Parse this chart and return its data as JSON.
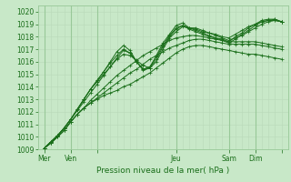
{
  "xlabel": "Pression niveau de la mer( hPa )",
  "bg_color": "#c8e8c8",
  "grid_color_minor": "#b8d8b8",
  "grid_color_major": "#98c898",
  "line_color": "#1a6e1a",
  "ylim": [
    1009,
    1020.5
  ],
  "xlim": [
    0,
    114
  ],
  "yticks": [
    1009,
    1010,
    1011,
    1012,
    1013,
    1014,
    1015,
    1016,
    1017,
    1018,
    1019,
    1020
  ],
  "xtick_positions": [
    3,
    15,
    27,
    63,
    87,
    99,
    111
  ],
  "xtick_labels": [
    "Mer",
    "Ven",
    "",
    "Jeu",
    "Sam",
    "Dim",
    ""
  ],
  "day_vlines": [
    3,
    15,
    27,
    63,
    87,
    99
  ],
  "series": [
    [
      3,
      1009.1,
      6,
      1009.5,
      9,
      1010.0,
      12,
      1010.5,
      15,
      1011.2,
      18,
      1011.8,
      21,
      1012.3,
      24,
      1012.7,
      27,
      1013.0,
      30,
      1013.3,
      33,
      1013.5,
      36,
      1013.7,
      39,
      1014.0,
      42,
      1014.2,
      45,
      1014.5,
      48,
      1014.8,
      51,
      1015.1,
      54,
      1015.5,
      57,
      1015.9,
      60,
      1016.3,
      63,
      1016.7,
      66,
      1017.0,
      69,
      1017.2,
      72,
      1017.3,
      75,
      1017.3,
      78,
      1017.2,
      81,
      1017.1,
      84,
      1017.0,
      87,
      1016.9,
      90,
      1016.8,
      93,
      1016.7,
      96,
      1016.6,
      99,
      1016.6,
      102,
      1016.5,
      105,
      1016.4,
      108,
      1016.3,
      111,
      1016.2
    ],
    [
      3,
      1009.1,
      6,
      1009.5,
      9,
      1010.0,
      12,
      1010.5,
      15,
      1011.2,
      18,
      1011.8,
      21,
      1012.3,
      24,
      1012.7,
      27,
      1013.1,
      30,
      1013.5,
      33,
      1013.9,
      36,
      1014.3,
      39,
      1014.7,
      42,
      1015.1,
      45,
      1015.4,
      48,
      1015.8,
      51,
      1016.2,
      54,
      1016.5,
      57,
      1016.8,
      60,
      1017.1,
      63,
      1017.3,
      66,
      1017.5,
      69,
      1017.7,
      72,
      1017.8,
      75,
      1017.8,
      78,
      1017.7,
      81,
      1017.6,
      84,
      1017.5,
      87,
      1017.4,
      90,
      1017.4,
      93,
      1017.4,
      96,
      1017.4,
      99,
      1017.4,
      102,
      1017.3,
      105,
      1017.2,
      108,
      1017.1,
      111,
      1017.0
    ],
    [
      3,
      1009.1,
      6,
      1009.5,
      9,
      1010.0,
      12,
      1010.5,
      15,
      1011.2,
      18,
      1011.8,
      21,
      1012.3,
      24,
      1012.9,
      27,
      1013.4,
      30,
      1013.9,
      33,
      1014.4,
      36,
      1014.9,
      39,
      1015.3,
      42,
      1015.7,
      45,
      1016.1,
      48,
      1016.5,
      51,
      1016.8,
      54,
      1017.1,
      57,
      1017.4,
      60,
      1017.7,
      63,
      1017.9,
      66,
      1018.0,
      69,
      1018.1,
      72,
      1018.1,
      75,
      1018.0,
      78,
      1017.9,
      81,
      1017.8,
      84,
      1017.7,
      87,
      1017.6,
      90,
      1017.6,
      93,
      1017.6,
      96,
      1017.6,
      99,
      1017.6,
      102,
      1017.5,
      105,
      1017.4,
      108,
      1017.3,
      111,
      1017.2
    ],
    [
      3,
      1009.1,
      6,
      1009.6,
      9,
      1010.1,
      12,
      1010.7,
      15,
      1011.4,
      18,
      1012.2,
      21,
      1013.0,
      24,
      1013.8,
      27,
      1014.4,
      30,
      1015.0,
      33,
      1015.6,
      36,
      1016.2,
      39,
      1016.6,
      42,
      1016.5,
      45,
      1016.1,
      48,
      1015.7,
      51,
      1015.5,
      54,
      1016.0,
      57,
      1017.0,
      60,
      1017.9,
      63,
      1018.4,
      66,
      1018.8,
      69,
      1018.7,
      72,
      1018.7,
      75,
      1018.5,
      78,
      1018.3,
      81,
      1018.1,
      84,
      1017.9,
      87,
      1017.7,
      90,
      1017.9,
      93,
      1018.1,
      96,
      1018.4,
      99,
      1018.7,
      102,
      1019.0,
      105,
      1019.2,
      108,
      1019.3,
      111,
      1019.2
    ],
    [
      3,
      1009.1,
      6,
      1009.6,
      9,
      1010.1,
      12,
      1010.7,
      15,
      1011.4,
      18,
      1012.2,
      21,
      1013.0,
      24,
      1013.8,
      27,
      1014.5,
      30,
      1015.2,
      33,
      1016.0,
      36,
      1016.8,
      39,
      1017.3,
      42,
      1016.9,
      45,
      1016.0,
      48,
      1015.3,
      51,
      1015.5,
      54,
      1016.5,
      57,
      1017.5,
      60,
      1018.2,
      63,
      1018.9,
      66,
      1019.1,
      69,
      1018.7,
      72,
      1018.5,
      75,
      1018.3,
      78,
      1018.1,
      81,
      1017.9,
      84,
      1017.7,
      87,
      1017.5,
      90,
      1017.8,
      93,
      1018.2,
      96,
      1018.5,
      99,
      1018.9,
      102,
      1019.2,
      105,
      1019.3,
      108,
      1019.4,
      111,
      1019.2
    ],
    [
      3,
      1009.1,
      6,
      1009.6,
      9,
      1010.1,
      12,
      1010.7,
      15,
      1011.4,
      18,
      1012.1,
      21,
      1012.8,
      24,
      1013.5,
      27,
      1014.2,
      30,
      1014.9,
      33,
      1015.6,
      36,
      1016.3,
      39,
      1016.9,
      42,
      1016.7,
      45,
      1016.0,
      48,
      1015.4,
      51,
      1015.5,
      54,
      1016.2,
      57,
      1017.2,
      60,
      1018.0,
      63,
      1018.6,
      66,
      1018.9,
      69,
      1018.7,
      72,
      1018.6,
      75,
      1018.4,
      78,
      1018.3,
      81,
      1018.2,
      84,
      1018.0,
      87,
      1017.9,
      90,
      1018.2,
      93,
      1018.5,
      96,
      1018.8,
      99,
      1019.0,
      102,
      1019.2,
      105,
      1019.3,
      108,
      1019.3,
      111,
      1019.2
    ],
    [
      3,
      1009.1,
      6,
      1009.6,
      9,
      1010.1,
      12,
      1010.7,
      15,
      1011.4,
      18,
      1012.2,
      21,
      1013.0,
      24,
      1013.8,
      27,
      1014.5,
      30,
      1015.2,
      33,
      1015.9,
      36,
      1016.5,
      39,
      1017.0,
      42,
      1016.7,
      45,
      1016.0,
      48,
      1015.4,
      51,
      1015.6,
      54,
      1016.4,
      57,
      1017.3,
      60,
      1018.1,
      63,
      1018.7,
      66,
      1018.9,
      69,
      1018.6,
      72,
      1018.4,
      75,
      1018.2,
      78,
      1018.0,
      81,
      1017.9,
      84,
      1017.8,
      87,
      1017.6,
      90,
      1018.0,
      93,
      1018.3,
      96,
      1018.7,
      99,
      1019.0,
      102,
      1019.3,
      105,
      1019.4,
      108,
      1019.4,
      111,
      1019.2
    ]
  ]
}
